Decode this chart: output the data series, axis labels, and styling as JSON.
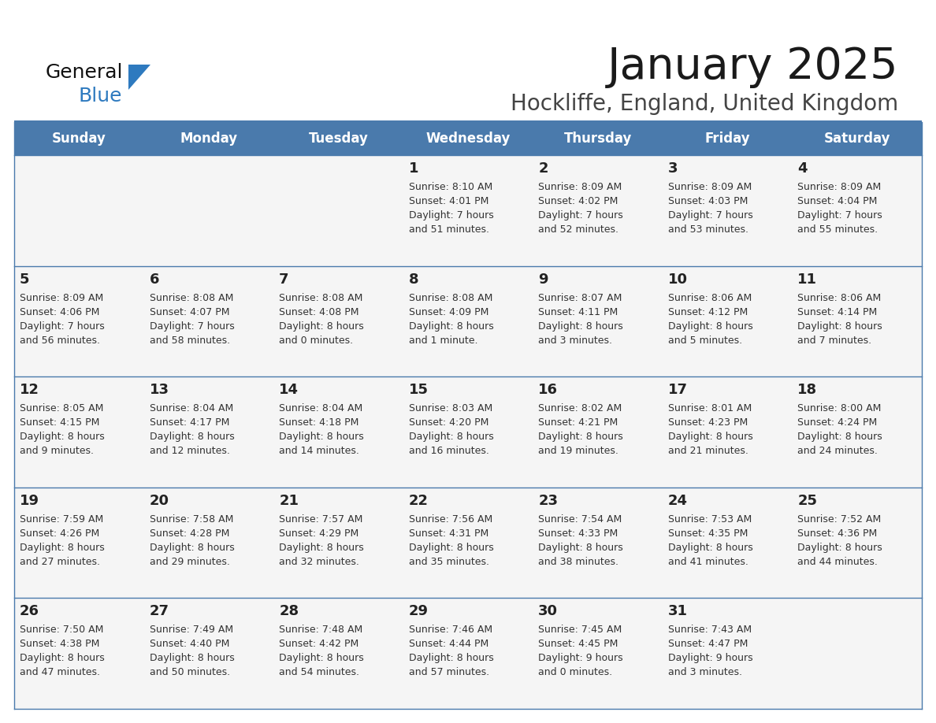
{
  "title": "January 2025",
  "subtitle": "Hockliffe, England, United Kingdom",
  "header_color": "#4a7aac",
  "header_text_color": "#ffffff",
  "cell_bg_color": "#f5f5f5",
  "day_headers": [
    "Sunday",
    "Monday",
    "Tuesday",
    "Wednesday",
    "Thursday",
    "Friday",
    "Saturday"
  ],
  "divider_color": "#4a7aac",
  "text_color": "#333333",
  "day_num_color": "#222222",
  "calendar_data": [
    [
      {
        "day": "",
        "sunrise": "",
        "sunset": "",
        "daylight": ""
      },
      {
        "day": "",
        "sunrise": "",
        "sunset": "",
        "daylight": ""
      },
      {
        "day": "",
        "sunrise": "",
        "sunset": "",
        "daylight": ""
      },
      {
        "day": "1",
        "sunrise": "8:10 AM",
        "sunset": "4:01 PM",
        "daylight": "7 hours\nand 51 minutes."
      },
      {
        "day": "2",
        "sunrise": "8:09 AM",
        "sunset": "4:02 PM",
        "daylight": "7 hours\nand 52 minutes."
      },
      {
        "day": "3",
        "sunrise": "8:09 AM",
        "sunset": "4:03 PM",
        "daylight": "7 hours\nand 53 minutes."
      },
      {
        "day": "4",
        "sunrise": "8:09 AM",
        "sunset": "4:04 PM",
        "daylight": "7 hours\nand 55 minutes."
      }
    ],
    [
      {
        "day": "5",
        "sunrise": "8:09 AM",
        "sunset": "4:06 PM",
        "daylight": "7 hours\nand 56 minutes."
      },
      {
        "day": "6",
        "sunrise": "8:08 AM",
        "sunset": "4:07 PM",
        "daylight": "7 hours\nand 58 minutes."
      },
      {
        "day": "7",
        "sunrise": "8:08 AM",
        "sunset": "4:08 PM",
        "daylight": "8 hours\nand 0 minutes."
      },
      {
        "day": "8",
        "sunrise": "8:08 AM",
        "sunset": "4:09 PM",
        "daylight": "8 hours\nand 1 minute."
      },
      {
        "day": "9",
        "sunrise": "8:07 AM",
        "sunset": "4:11 PM",
        "daylight": "8 hours\nand 3 minutes."
      },
      {
        "day": "10",
        "sunrise": "8:06 AM",
        "sunset": "4:12 PM",
        "daylight": "8 hours\nand 5 minutes."
      },
      {
        "day": "11",
        "sunrise": "8:06 AM",
        "sunset": "4:14 PM",
        "daylight": "8 hours\nand 7 minutes."
      }
    ],
    [
      {
        "day": "12",
        "sunrise": "8:05 AM",
        "sunset": "4:15 PM",
        "daylight": "8 hours\nand 9 minutes."
      },
      {
        "day": "13",
        "sunrise": "8:04 AM",
        "sunset": "4:17 PM",
        "daylight": "8 hours\nand 12 minutes."
      },
      {
        "day": "14",
        "sunrise": "8:04 AM",
        "sunset": "4:18 PM",
        "daylight": "8 hours\nand 14 minutes."
      },
      {
        "day": "15",
        "sunrise": "8:03 AM",
        "sunset": "4:20 PM",
        "daylight": "8 hours\nand 16 minutes."
      },
      {
        "day": "16",
        "sunrise": "8:02 AM",
        "sunset": "4:21 PM",
        "daylight": "8 hours\nand 19 minutes."
      },
      {
        "day": "17",
        "sunrise": "8:01 AM",
        "sunset": "4:23 PM",
        "daylight": "8 hours\nand 21 minutes."
      },
      {
        "day": "18",
        "sunrise": "8:00 AM",
        "sunset": "4:24 PM",
        "daylight": "8 hours\nand 24 minutes."
      }
    ],
    [
      {
        "day": "19",
        "sunrise": "7:59 AM",
        "sunset": "4:26 PM",
        "daylight": "8 hours\nand 27 minutes."
      },
      {
        "day": "20",
        "sunrise": "7:58 AM",
        "sunset": "4:28 PM",
        "daylight": "8 hours\nand 29 minutes."
      },
      {
        "day": "21",
        "sunrise": "7:57 AM",
        "sunset": "4:29 PM",
        "daylight": "8 hours\nand 32 minutes."
      },
      {
        "day": "22",
        "sunrise": "7:56 AM",
        "sunset": "4:31 PM",
        "daylight": "8 hours\nand 35 minutes."
      },
      {
        "day": "23",
        "sunrise": "7:54 AM",
        "sunset": "4:33 PM",
        "daylight": "8 hours\nand 38 minutes."
      },
      {
        "day": "24",
        "sunrise": "7:53 AM",
        "sunset": "4:35 PM",
        "daylight": "8 hours\nand 41 minutes."
      },
      {
        "day": "25",
        "sunrise": "7:52 AM",
        "sunset": "4:36 PM",
        "daylight": "8 hours\nand 44 minutes."
      }
    ],
    [
      {
        "day": "26",
        "sunrise": "7:50 AM",
        "sunset": "4:38 PM",
        "daylight": "8 hours\nand 47 minutes."
      },
      {
        "day": "27",
        "sunrise": "7:49 AM",
        "sunset": "4:40 PM",
        "daylight": "8 hours\nand 50 minutes."
      },
      {
        "day": "28",
        "sunrise": "7:48 AM",
        "sunset": "4:42 PM",
        "daylight": "8 hours\nand 54 minutes."
      },
      {
        "day": "29",
        "sunrise": "7:46 AM",
        "sunset": "4:44 PM",
        "daylight": "8 hours\nand 57 minutes."
      },
      {
        "day": "30",
        "sunrise": "7:45 AM",
        "sunset": "4:45 PM",
        "daylight": "9 hours\nand 0 minutes."
      },
      {
        "day": "31",
        "sunrise": "7:43 AM",
        "sunset": "4:47 PM",
        "daylight": "9 hours\nand 3 minutes."
      },
      {
        "day": "",
        "sunrise": "",
        "sunset": "",
        "daylight": ""
      }
    ]
  ]
}
